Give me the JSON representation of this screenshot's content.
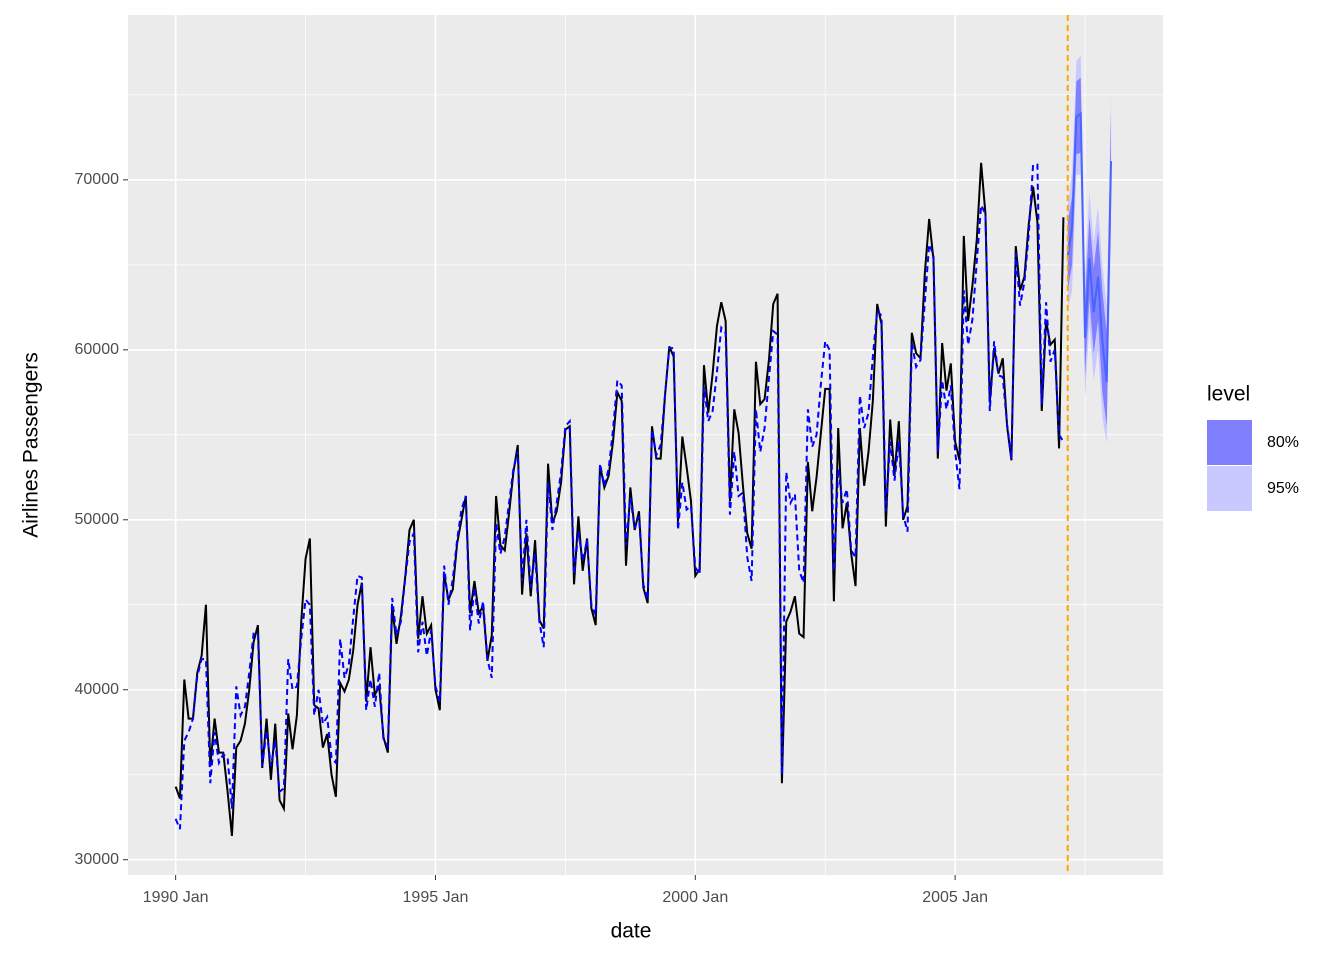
{
  "chart_data": {
    "type": "line",
    "xlabel": "date",
    "ylabel": "Airlines Passengers",
    "x": [
      "1990-01",
      "1990-02",
      "1990-03",
      "1990-04",
      "1990-05",
      "1990-06",
      "1990-07",
      "1990-08",
      "1990-09",
      "1990-10",
      "1990-11",
      "1990-12",
      "1991-01",
      "1991-02",
      "1991-03",
      "1991-04",
      "1991-05",
      "1991-06",
      "1991-07",
      "1991-08",
      "1991-09",
      "1991-10",
      "1991-11",
      "1991-12",
      "1992-01",
      "1992-02",
      "1992-03",
      "1992-04",
      "1992-05",
      "1992-06",
      "1992-07",
      "1992-08",
      "1992-09",
      "1992-10",
      "1992-11",
      "1992-12",
      "1993-01",
      "1993-02",
      "1993-03",
      "1993-04",
      "1993-05",
      "1993-06",
      "1993-07",
      "1993-08",
      "1993-09",
      "1993-10",
      "1993-11",
      "1993-12",
      "1994-01",
      "1994-02",
      "1994-03",
      "1994-04",
      "1994-05",
      "1994-06",
      "1994-07",
      "1994-08",
      "1994-09",
      "1994-10",
      "1994-11",
      "1994-12",
      "1995-01",
      "1995-02",
      "1995-03",
      "1995-04",
      "1995-05",
      "1995-06",
      "1995-07",
      "1995-08",
      "1995-09",
      "1995-10",
      "1995-11",
      "1995-12",
      "1996-01",
      "1996-02",
      "1996-03",
      "1996-04",
      "1996-05",
      "1996-06",
      "1996-07",
      "1996-08",
      "1996-09",
      "1996-10",
      "1996-11",
      "1996-12",
      "1997-01",
      "1997-02",
      "1997-03",
      "1997-04",
      "1997-05",
      "1997-06",
      "1997-07",
      "1997-08",
      "1997-09",
      "1997-10",
      "1997-11",
      "1997-12",
      "1998-01",
      "1998-02",
      "1998-03",
      "1998-04",
      "1998-05",
      "1998-06",
      "1998-07",
      "1998-08",
      "1998-09",
      "1998-10",
      "1998-11",
      "1998-12",
      "1999-01",
      "1999-02",
      "1999-03",
      "1999-04",
      "1999-05",
      "1999-06",
      "1999-07",
      "1999-08",
      "1999-09",
      "1999-10",
      "1999-11",
      "1999-12",
      "2000-01",
      "2000-02",
      "2000-03",
      "2000-04",
      "2000-05",
      "2000-06",
      "2000-07",
      "2000-08",
      "2000-09",
      "2000-10",
      "2000-11",
      "2000-12",
      "2001-01",
      "2001-02",
      "2001-03",
      "2001-04",
      "2001-05",
      "2001-06",
      "2001-07",
      "2001-08",
      "2001-09",
      "2001-10",
      "2001-11",
      "2001-12",
      "2002-01",
      "2002-02",
      "2002-03",
      "2002-04",
      "2002-05",
      "2002-06",
      "2002-07",
      "2002-08",
      "2002-09",
      "2002-10",
      "2002-11",
      "2002-12",
      "2003-01",
      "2003-02",
      "2003-03",
      "2003-04",
      "2003-05",
      "2003-06",
      "2003-07",
      "2003-08",
      "2003-09",
      "2003-10",
      "2003-11",
      "2003-12",
      "2004-01",
      "2004-02",
      "2004-03",
      "2004-04",
      "2004-05",
      "2004-06",
      "2004-07",
      "2004-08",
      "2004-09",
      "2004-10",
      "2004-11",
      "2004-12",
      "2005-01",
      "2005-02",
      "2005-03",
      "2005-04",
      "2005-05",
      "2005-06",
      "2005-07",
      "2005-08",
      "2005-09",
      "2005-10",
      "2005-11",
      "2005-12",
      "2006-01",
      "2006-02",
      "2006-03",
      "2006-04",
      "2006-05",
      "2006-06",
      "2006-07",
      "2006-08",
      "2006-09",
      "2006-10",
      "2006-11",
      "2006-12",
      "2007-01",
      "2007-02"
    ],
    "series": [
      {
        "color": "#000000",
        "dash": "solid",
        "values": [
          34300,
          33600,
          40600,
          38300,
          38300,
          41000,
          42000,
          45000,
          35500,
          38300,
          36300,
          36300,
          34000,
          31400,
          36600,
          37000,
          38000,
          40000,
          42800,
          43800,
          35400,
          38300,
          34700,
          38000,
          33500,
          33000,
          38600,
          36500,
          38500,
          44000,
          47700,
          48900,
          39100,
          38900,
          36600,
          37400,
          35000,
          33700,
          40400,
          39900,
          40600,
          42300,
          45000,
          46300,
          39300,
          42500,
          39700,
          40200,
          37200,
          36300,
          44900,
          42700,
          44300,
          46600,
          49400,
          50000,
          43000,
          45500,
          43300,
          43800,
          40000,
          38800,
          46800,
          45300,
          45900,
          48600,
          50000,
          51400,
          44500,
          46400,
          44500,
          44900,
          41700,
          43200,
          51400,
          48500,
          48200,
          50400,
          52800,
          54400,
          45600,
          49200,
          45500,
          48800,
          44100,
          43600,
          53300,
          49800,
          50500,
          52200,
          55300,
          55500,
          46200,
          50200,
          47000,
          48900,
          44800,
          43800,
          53200,
          51900,
          52600,
          54600,
          57500,
          57000,
          47300,
          51900,
          49400,
          50500,
          46000,
          45100,
          55500,
          53600,
          53600,
          57300,
          60200,
          59600,
          49900,
          54900,
          53100,
          51100,
          46700,
          47100,
          59100,
          56300,
          58600,
          61400,
          62800,
          61700,
          51100,
          56500,
          55100,
          52000,
          49200,
          48300,
          59300,
          56800,
          57100,
          59400,
          62700,
          63300,
          34500,
          44000,
          44600,
          45500,
          43300,
          43100,
          53400,
          50500,
          52500,
          55100,
          57700,
          57700,
          45200,
          55400,
          49500,
          51000,
          48000,
          46100,
          55400,
          52000,
          54000,
          57000,
          62700,
          61500,
          49600,
          55900,
          52600,
          55800,
          50000,
          50800,
          61000,
          59800,
          59500,
          64500,
          67700,
          65300,
          53600,
          60400,
          57600,
          59200,
          54600,
          53500,
          66700,
          61700,
          63800,
          66500,
          71000,
          68000,
          56900,
          60100,
          58600,
          59500,
          55500,
          53500,
          66100,
          63500,
          64300,
          67400,
          69600,
          67500,
          56400,
          61700,
          60300,
          60600,
          54200,
          67800
        ]
      },
      {
        "color": "#0000ff",
        "dash": "dashed",
        "values": [
          32400,
          31800,
          37000,
          37500,
          38300,
          40800,
          41800,
          41800,
          34500,
          37500,
          35700,
          36200,
          36000,
          33000,
          40200,
          38500,
          39000,
          41000,
          43300,
          43300,
          35500,
          37600,
          35500,
          37000,
          34000,
          34200,
          41800,
          40000,
          40200,
          43000,
          45300,
          45000,
          38500,
          40000,
          38000,
          38400,
          36000,
          35700,
          43000,
          40700,
          41500,
          44200,
          46700,
          46600,
          38800,
          40600,
          39000,
          41000,
          37000,
          36700,
          45400,
          43200,
          44000,
          46500,
          48700,
          49200,
          42200,
          44000,
          42000,
          43500,
          40200,
          39300,
          47300,
          45000,
          46500,
          48800,
          50600,
          51400,
          43500,
          46000,
          43900,
          45200,
          41800,
          40700,
          49800,
          48000,
          49000,
          51000,
          53000,
          54000,
          46400,
          50000,
          46000,
          48000,
          44000,
          42500,
          52200,
          49400,
          51000,
          52800,
          55500,
          55800,
          46800,
          49300,
          47600,
          48800,
          45000,
          44400,
          53300,
          52000,
          53000,
          55300,
          58200,
          57900,
          48500,
          51300,
          49500,
          50200,
          46200,
          45300,
          55300,
          53800,
          54400,
          57300,
          60100,
          60100,
          49400,
          52200,
          50600,
          50800,
          47200,
          46800,
          57800,
          55800,
          56400,
          58700,
          61300,
          61000,
          50300,
          54000,
          51400,
          51600,
          47800,
          46400,
          56500,
          54000,
          55400,
          58300,
          61100,
          60900,
          35000,
          52800,
          51000,
          51500,
          47000,
          46300,
          56500,
          54300,
          55000,
          58000,
          60500,
          60000,
          47000,
          53000,
          51000,
          51800,
          48200,
          47800,
          57300,
          55400,
          56300,
          59600,
          62300,
          62000,
          50500,
          54600,
          52300,
          54600,
          50300,
          49300,
          60400,
          59000,
          59400,
          62800,
          66200,
          65600,
          54000,
          58200,
          56500,
          57900,
          54000,
          51800,
          63500,
          60300,
          61800,
          65200,
          68500,
          68000,
          56400,
          60500,
          58500,
          58400,
          55600,
          53600,
          65700,
          62600,
          64000,
          66800,
          70900,
          70900,
          56800,
          62800,
          59300,
          60000,
          55000,
          54600
        ]
      }
    ],
    "forecast": {
      "color": "#4a64ff",
      "x": [
        "2007-03",
        "2007-04",
        "2007-05",
        "2007-06",
        "2007-07",
        "2007-08",
        "2007-09",
        "2007-10",
        "2007-11",
        "2007-12",
        "2008-01"
      ],
      "values": [
        65500,
        67200,
        73700,
        73900,
        60700,
        65400,
        62200,
        64300,
        60500,
        58100,
        71100
      ],
      "intervals": [
        {
          "level": "95%",
          "color": "#c9c9ff",
          "lo": [
            62300,
            63500,
            70300,
            70300,
            57200,
            61500,
            58200,
            60000,
            56000,
            54500,
            67000
          ],
          "hi": [
            68500,
            70500,
            77000,
            77300,
            64500,
            69300,
            66300,
            68500,
            65000,
            62500,
            75000
          ]
        },
        {
          "level": "80%",
          "color": "#8080ff",
          "lo": [
            63500,
            65000,
            71500,
            71600,
            58500,
            63000,
            59800,
            61700,
            57500,
            55500,
            68500
          ],
          "hi": [
            67500,
            69000,
            75800,
            76000,
            63000,
            67800,
            64800,
            67000,
            63500,
            61000,
            74000
          ]
        }
      ]
    },
    "legend_title": "level",
    "vline": {
      "x": "2007-03",
      "color": "#ffa500",
      "dash": "dashed"
    },
    "xlim": [
      "1989-02",
      "2009-01"
    ],
    "ylim": [
      29100,
      79700
    ],
    "xticks": [
      {
        "value": "1990-01",
        "label": "1990 Jan"
      },
      {
        "value": "1995-01",
        "label": "1995 Jan"
      },
      {
        "value": "2000-01",
        "label": "2000 Jan"
      },
      {
        "value": "2005-01",
        "label": "2005 Jan"
      }
    ],
    "yticks": [
      30000,
      40000,
      50000,
      60000,
      70000
    ],
    "xminor": [
      "1992-07",
      "1997-07",
      "2002-07",
      "2007-07"
    ],
    "yminor": [
      35000,
      45000,
      55000,
      65000,
      75000
    ],
    "grid": true
  }
}
